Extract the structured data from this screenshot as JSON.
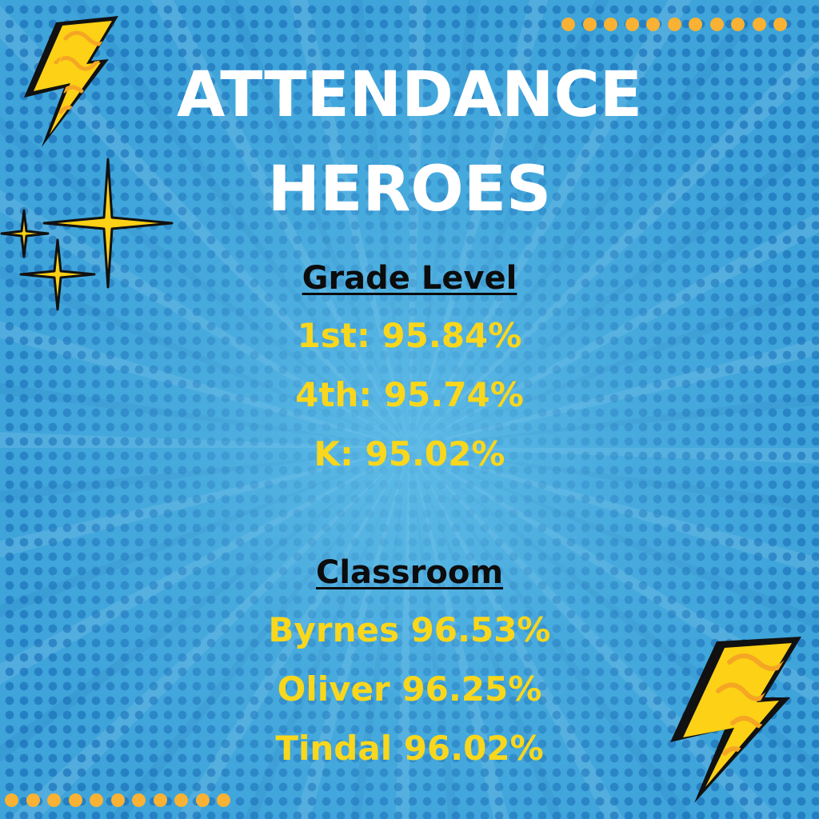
{
  "title": {
    "line1": "ATTENDANCE",
    "line2": "HEROES"
  },
  "grade_level": {
    "heading": "Grade Level",
    "entries": [
      "1st: 95.84%",
      "4th: 95.74%",
      "K: 95.02%"
    ]
  },
  "classroom": {
    "heading": "Classroom",
    "entries": [
      "Byrnes 96.53%",
      "Oliver 96.25%",
      "Tindal 96.02%"
    ]
  },
  "icons": {
    "top_left": "lightning-bolt-icon",
    "bottom_right": "lightning-bolt-icon",
    "sparkles": "sparkle-icon",
    "dot_rows": "orange-dots"
  },
  "colors": {
    "background": "#3ea4da",
    "halftone": "#1669b4",
    "title": "#ffffff",
    "heading": "#0c0c0c",
    "stat_text": "#f9d71c",
    "bolt_fill": "#fcd116",
    "bolt_swirl": "#f5a623",
    "dots": "#f9b233"
  }
}
